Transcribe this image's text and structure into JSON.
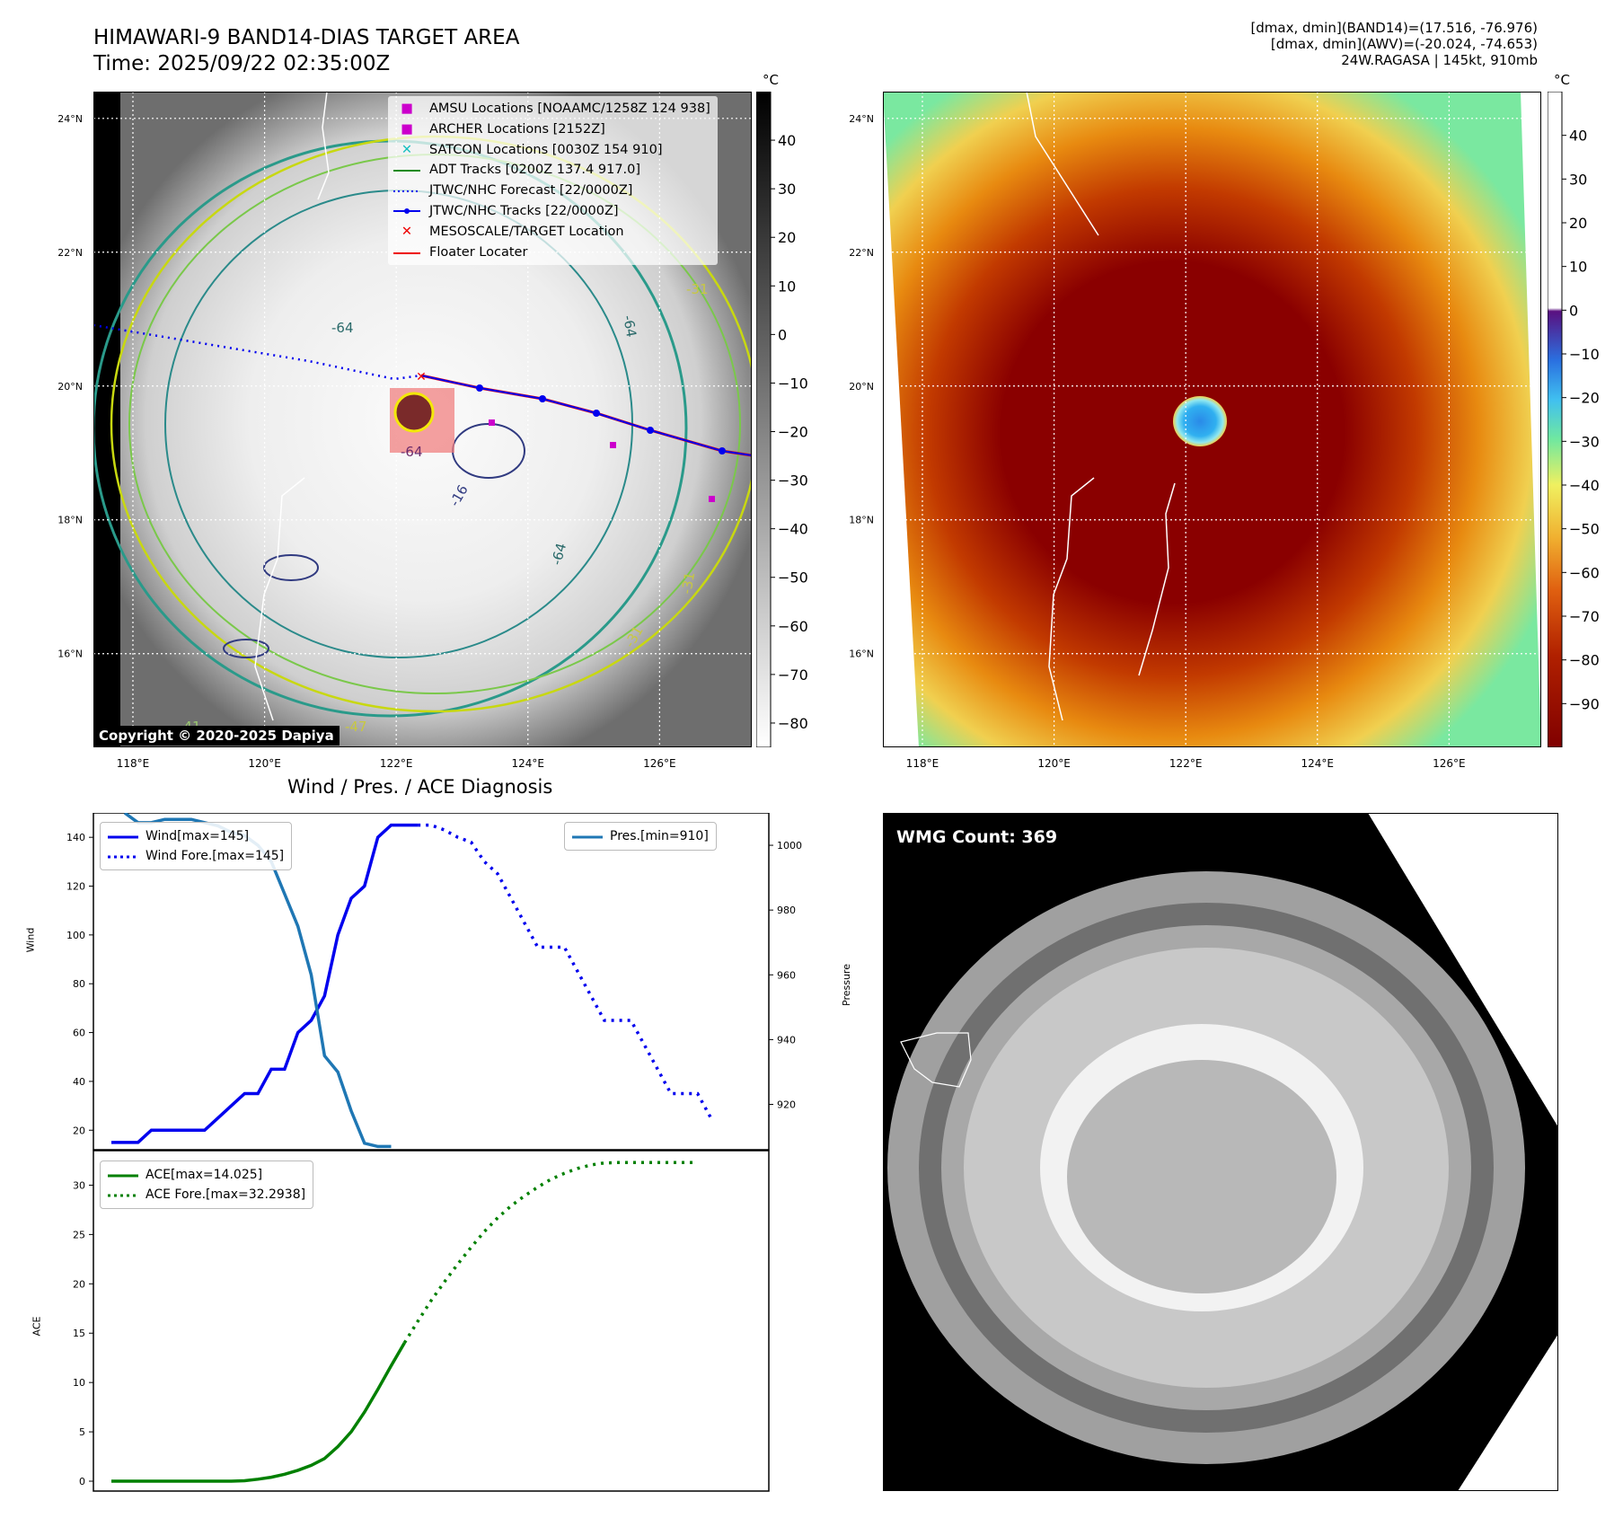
{
  "header": {
    "title_line1": "HIMAWARI-9 BAND14-DIAS TARGET AREA",
    "title_line2": "Time: 2025/09/22 02:35:00Z",
    "info_line1": "[dmax, dmin](BAND14)=(17.516, -76.976)",
    "info_line2": "[dmax, dmin](AWV)=(-20.024, -74.653)",
    "info_line3": "24W.RAGASA | 145kt, 910mb"
  },
  "maps": {
    "lon_ticks": [
      "118°E",
      "120°E",
      "122°E",
      "124°E",
      "126°E"
    ],
    "lat_ticks": [
      "24°N",
      "22°N",
      "20°N",
      "18°N",
      "16°N"
    ],
    "lon_values": [
      118,
      120,
      122,
      124,
      126
    ],
    "lat_values": [
      24,
      22,
      20,
      18,
      16
    ],
    "lon_range": [
      117.4,
      127.4
    ],
    "lat_range": [
      14.6,
      24.4
    ],
    "copyright": "Copyright © 2020-2025 Dapiya",
    "contour_labels": [
      "-64",
      "-64",
      "-64",
      "-31",
      "-31",
      "-31",
      "-41",
      "-47",
      "-16",
      "-64"
    ],
    "legend": [
      {
        "label": "AMSU Locations [NOAAMC/1258Z 124 938]",
        "marker": "■",
        "color": "#cc00cc"
      },
      {
        "label": "ARCHER Locations [2152Z]",
        "marker": "■",
        "color": "#cc00cc"
      },
      {
        "label": "SATCON Locations [0030Z 154 910]",
        "marker": "✕",
        "color": "#17c0c0"
      },
      {
        "label": "ADT Tracks [0200Z 137.4 917.0]",
        "marker": "line",
        "color": "#1a8a1a"
      },
      {
        "label": "JTWC/NHC Forecast [22/0000Z]",
        "marker": "dotted",
        "color": "#0000ee"
      },
      {
        "label": "JTWC/NHC Tracks [22/0000Z]",
        "marker": "line-dot",
        "color": "#0000ee"
      },
      {
        "label": "MESOSCALE/TARGET Location",
        "marker": "✕",
        "color": "#ee0000"
      },
      {
        "label": "Floater Locater",
        "marker": "line",
        "color": "#ee0000"
      }
    ]
  },
  "colorbar_gray": {
    "unit": "°C",
    "ticks": [
      "40",
      "30",
      "20",
      "10",
      "0",
      "−10",
      "−20",
      "−30",
      "−40",
      "−50",
      "−60",
      "−70",
      "−80"
    ],
    "tick_values": [
      40,
      30,
      20,
      10,
      0,
      -10,
      -20,
      -30,
      -40,
      -50,
      -60,
      -70,
      -80
    ],
    "range": [
      -85,
      50
    ]
  },
  "colorbar_color": {
    "unit": "°C",
    "ticks": [
      "40",
      "30",
      "20",
      "10",
      "0",
      "−10",
      "−20",
      "−30",
      "−40",
      "−50",
      "−60",
      "−70",
      "−80",
      "−90"
    ],
    "tick_values": [
      40,
      30,
      20,
      10,
      0,
      -10,
      -20,
      -30,
      -40,
      -50,
      -60,
      -70,
      -80,
      -90
    ],
    "range": [
      -100,
      50
    ]
  },
  "diagnosis_title": "Wind / Pres. / ACE Diagnosis",
  "wmg_label": "WMG Count: 369",
  "chart_data": [
    {
      "type": "line",
      "ylabel": "Wind",
      "y2label": "Pressure",
      "ylim": [
        12,
        150
      ],
      "y2lim": [
        906,
        1010
      ],
      "yticks": [
        20,
        40,
        60,
        80,
        100,
        120,
        140
      ],
      "y2ticks": [
        920,
        940,
        960,
        980,
        1000
      ],
      "x_count": 49,
      "legend_left": [
        "Wind[max=145]",
        "Wind Fore.[max=145]"
      ],
      "legend_right": [
        "Pres.[min=910]"
      ],
      "colors": {
        "wind": "#0000ee",
        "pres": "#1f77b4"
      },
      "series": [
        {
          "name": "Wind[max=145]",
          "style": "solid",
          "x_start": 0,
          "values": [
            15,
            15,
            15,
            20,
            20,
            20,
            20,
            20,
            25,
            30,
            35,
            35,
            45,
            45,
            60,
            65,
            75,
            100,
            115,
            120,
            140,
            145,
            145,
            145
          ]
        },
        {
          "name": "Wind Fore.[max=145]",
          "style": "dotted",
          "x_start": 23,
          "values": [
            145,
            145,
            143,
            140,
            138,
            130,
            125,
            115,
            105,
            95,
            95,
            95,
            85,
            75,
            65,
            65,
            65,
            55,
            45,
            35,
            35,
            35,
            25
          ]
        },
        {
          "name": "Pres.[min=910]",
          "style": "solid",
          "axis": "right",
          "x_start": 1,
          "values": [
            1010,
            1007,
            1007,
            1008,
            1008,
            1008,
            1007,
            1006,
            1004,
            1003,
            1000,
            995,
            985,
            975,
            960,
            935,
            930,
            918,
            908,
            907,
            907
          ]
        }
      ]
    },
    {
      "type": "line",
      "ylabel": "ACE",
      "ylim": [
        -1,
        33.5
      ],
      "yticks": [
        0,
        5,
        10,
        15,
        20,
        25,
        30
      ],
      "x_count": 49,
      "legend": [
        "ACE[max=14.025]",
        "ACE Fore.[max=32.2938]"
      ],
      "color": "#008000",
      "series": [
        {
          "name": "ACE[max=14.025]",
          "style": "solid",
          "x_start": 0,
          "values": [
            0,
            0,
            0,
            0,
            0,
            0,
            0,
            0,
            0,
            0,
            0.05,
            0.2,
            0.4,
            0.7,
            1.1,
            1.6,
            2.3,
            3.5,
            5.0,
            7.0,
            9.3,
            11.7,
            14.025
          ]
        },
        {
          "name": "ACE Fore.[max=32.2938]",
          "style": "dotted",
          "x_start": 22,
          "values": [
            14.025,
            16.2,
            18.3,
            20.2,
            22.0,
            23.7,
            25.3,
            26.7,
            27.9,
            28.9,
            29.8,
            30.6,
            31.2,
            31.7,
            32.05,
            32.25,
            32.29,
            32.29,
            32.29,
            32.29,
            32.29,
            32.29,
            32.29
          ]
        }
      ]
    }
  ]
}
